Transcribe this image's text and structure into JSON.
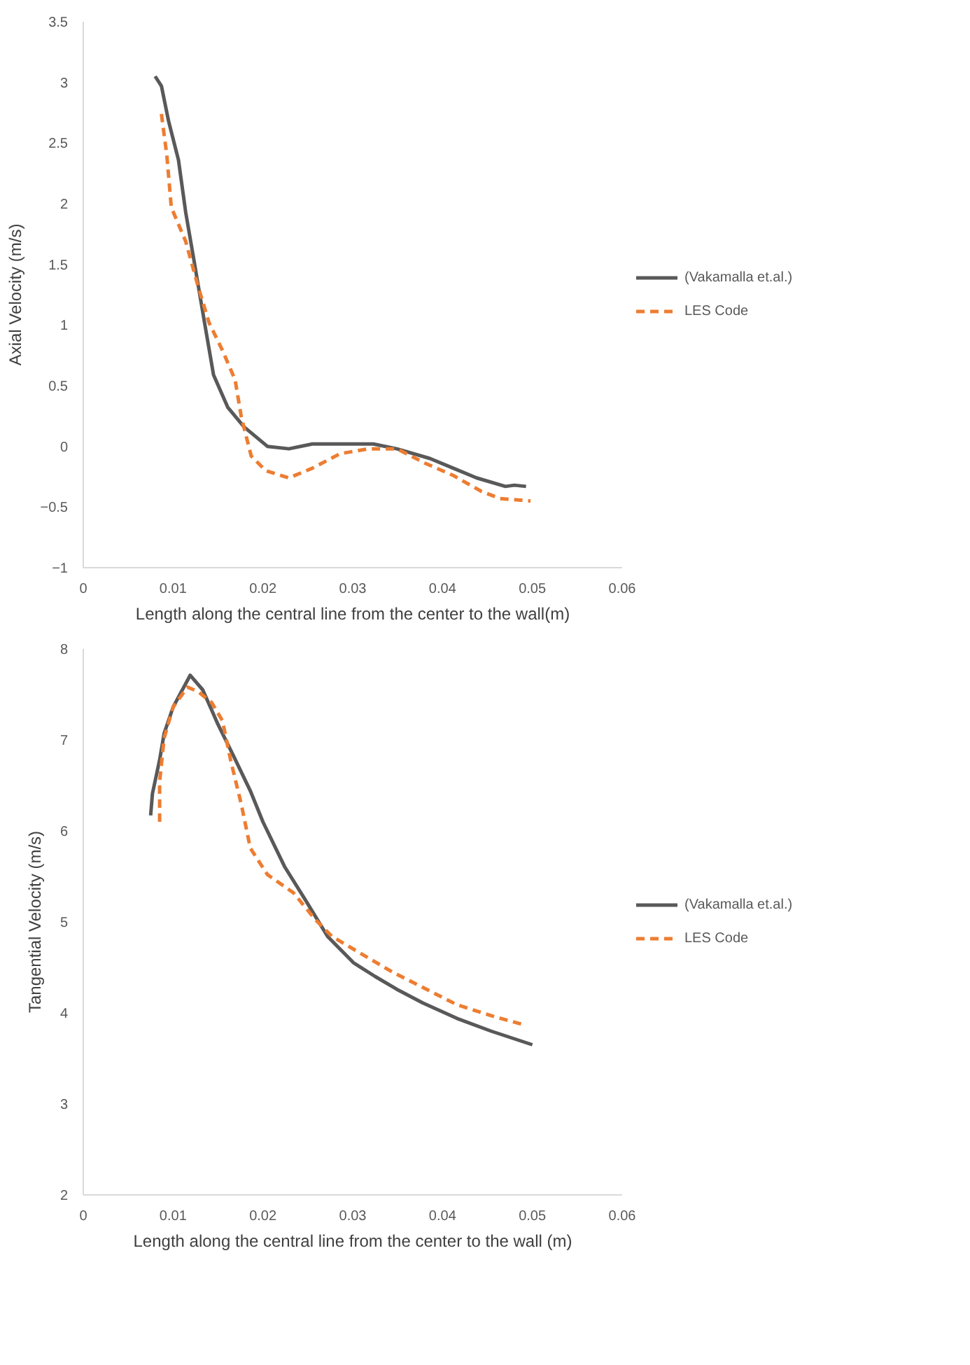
{
  "chart_data": [
    {
      "type": "line",
      "xlabel": "Length along the central line from the center to the wall(m)",
      "ylabel": "Axial Velocity (m/s)",
      "xlim": [
        0,
        0.06
      ],
      "xticks": [
        0,
        0.01,
        0.02,
        0.03,
        0.04,
        0.05,
        0.06
      ],
      "ylim": [
        -1,
        3.5
      ],
      "yticks": [
        -1,
        -0.5,
        0,
        0.5,
        1,
        1.5,
        2,
        2.5,
        3,
        3.5
      ],
      "grid": false,
      "legend": "right",
      "marker": "none",
      "series": [
        {
          "name": "(Vakamalla et.al.)",
          "color": "#595959",
          "line_style": "solid",
          "x": [
            0.008,
            0.0087,
            0.0095,
            0.0106,
            0.0114,
            0.0124,
            0.0135,
            0.0145,
            0.0161,
            0.0179,
            0.0205,
            0.0229,
            0.0255,
            0.0292,
            0.0323,
            0.0349,
            0.0386,
            0.0412,
            0.0438,
            0.047,
            0.048,
            0.0493
          ],
          "values": [
            3.05,
            2.97,
            2.68,
            2.36,
            1.93,
            1.5,
            1.02,
            0.59,
            0.32,
            0.16,
            0.0,
            -0.02,
            0.02,
            0.02,
            0.02,
            -0.02,
            -0.1,
            -0.18,
            -0.26,
            -0.33,
            -0.32,
            -0.33
          ]
        },
        {
          "name": "LES Code",
          "color": "#ed7d31",
          "line_style": "dashed",
          "x": [
            0.0087,
            0.0093,
            0.0098,
            0.0114,
            0.0127,
            0.014,
            0.0155,
            0.0169,
            0.0176,
            0.0187,
            0.0203,
            0.0229,
            0.0255,
            0.0286,
            0.0318,
            0.0349,
            0.0381,
            0.0412,
            0.0443,
            0.0464,
            0.0498
          ],
          "values": [
            2.74,
            2.4,
            1.97,
            1.69,
            1.34,
            1.02,
            0.79,
            0.55,
            0.24,
            -0.08,
            -0.2,
            -0.26,
            -0.18,
            -0.06,
            -0.02,
            -0.02,
            -0.14,
            -0.24,
            -0.37,
            -0.43,
            -0.45
          ]
        }
      ]
    },
    {
      "type": "line",
      "xlabel": "Length along the central line from the center to the wall (m)",
      "ylabel": "Tangential Velocity (m/s)",
      "xlim": [
        0,
        0.06
      ],
      "xticks": [
        0,
        0.01,
        0.02,
        0.03,
        0.04,
        0.05,
        0.06
      ],
      "ylim": [
        2,
        8
      ],
      "yticks": [
        2,
        3,
        4,
        5,
        6,
        7,
        8
      ],
      "grid": false,
      "legend": "right",
      "marker": "none",
      "series": [
        {
          "name": "(Vakamalla et.al.)",
          "color": "#595959",
          "line_style": "solid",
          "x": [
            0.0075,
            0.0077,
            0.0085,
            0.009,
            0.01,
            0.0119,
            0.0133,
            0.015,
            0.0167,
            0.0186,
            0.02,
            0.0224,
            0.0248,
            0.0272,
            0.0301,
            0.0325,
            0.0349,
            0.0378,
            0.0416,
            0.0454,
            0.05
          ],
          "values": [
            6.17,
            6.41,
            6.78,
            7.07,
            7.36,
            7.71,
            7.55,
            7.17,
            6.83,
            6.44,
            6.1,
            5.61,
            5.23,
            4.84,
            4.55,
            4.4,
            4.26,
            4.11,
            3.94,
            3.8,
            3.65
          ]
        },
        {
          "name": "LES Code",
          "color": "#ed7d31",
          "line_style": "dashed",
          "x": [
            0.0085,
            0.0085,
            0.009,
            0.01,
            0.0116,
            0.0128,
            0.0143,
            0.0155,
            0.0164,
            0.0176,
            0.0186,
            0.0205,
            0.0234,
            0.0258,
            0.0277,
            0.0306,
            0.0344,
            0.0378,
            0.0416,
            0.0454,
            0.049
          ],
          "values": [
            6.1,
            6.54,
            7.02,
            7.36,
            7.58,
            7.53,
            7.41,
            7.21,
            6.78,
            6.29,
            5.81,
            5.52,
            5.32,
            5.03,
            4.84,
            4.67,
            4.45,
            4.28,
            4.09,
            3.97,
            3.87
          ]
        }
      ]
    }
  ]
}
